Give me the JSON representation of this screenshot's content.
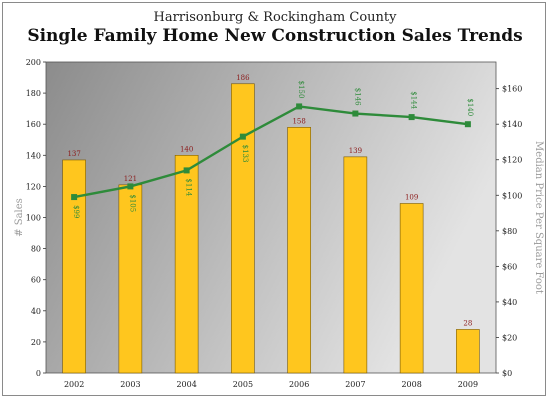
{
  "header": {
    "supertitle": "Harrisonburg & Rockingham County",
    "title": "Single Family Home New Construction Sales Trends"
  },
  "colors": {
    "bar": "#ffc61e",
    "bar_stroke": "#7a5a00",
    "line": "#2e8b3a",
    "bar_label": "#8b1a1a",
    "line_label": "#2e8b3a",
    "plot_bg_dark": "#8c8c8c",
    "plot_bg_light": "#e3e3e3"
  },
  "chart_data": {
    "type": "bar",
    "categories": [
      "2002",
      "2003",
      "2004",
      "2005",
      "2006",
      "2007",
      "2008",
      "2009"
    ],
    "series": [
      {
        "type": "bar",
        "values": [
          137,
          121,
          140,
          186,
          158,
          139,
          109,
          28
        ],
        "labels": [
          "137",
          "121",
          "140",
          "186",
          "158",
          "139",
          "109",
          "28"
        ],
        "axis": "left"
      },
      {
        "type": "line",
        "values": [
          99,
          105,
          114,
          133,
          150,
          146,
          144,
          140
        ],
        "labels": [
          "$99",
          "$105",
          "$114",
          "$133",
          "$150",
          "$146",
          "$144",
          "$140"
        ],
        "axis": "right"
      }
    ],
    "ylabel": "# Sales",
    "ylabel_right": "Median Price Per Square Foot",
    "ylim": [
      0,
      200
    ],
    "ylim_right": [
      0,
      175
    ],
    "yticks": [
      "0",
      "20",
      "40",
      "60",
      "80",
      "100",
      "120",
      "140",
      "160",
      "180",
      "200"
    ],
    "yticks_right": [
      "$0",
      "$20",
      "$40",
      "$60",
      "$80",
      "$100",
      "$120",
      "$140",
      "$160"
    ],
    "grid": false,
    "legend": "none"
  }
}
